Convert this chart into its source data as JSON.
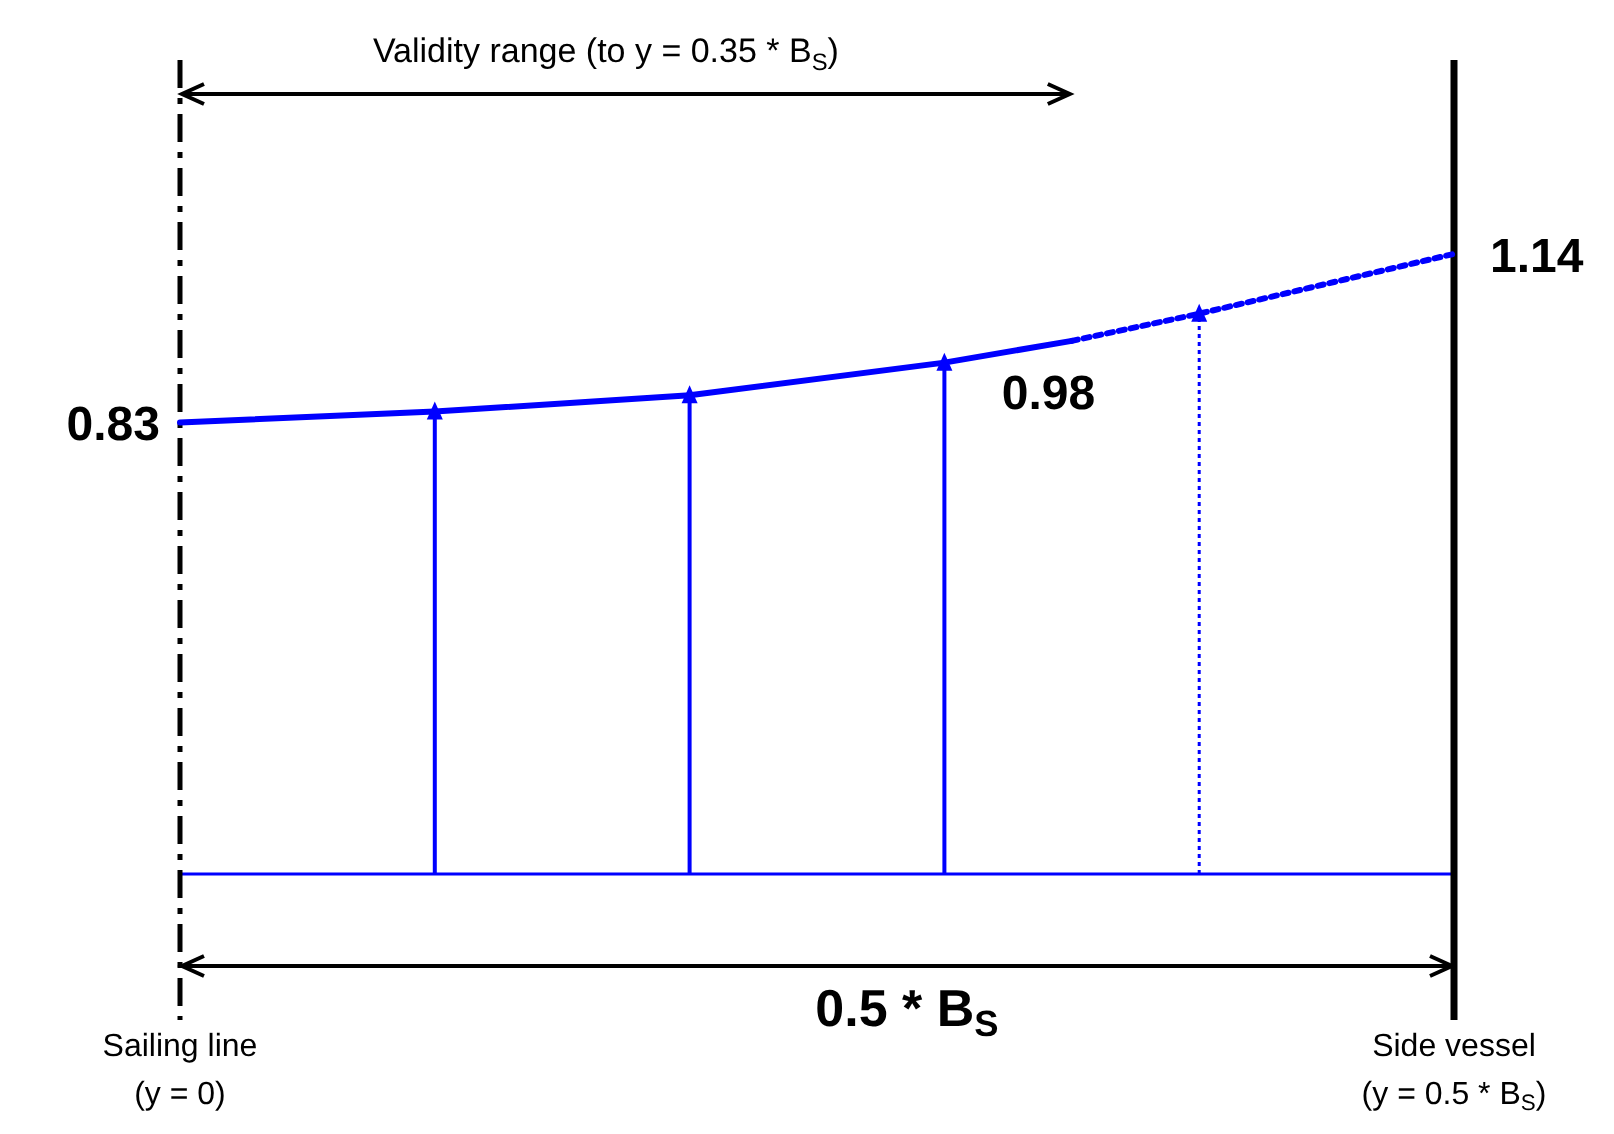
{
  "chart_data": {
    "type": "line",
    "xlim": [
      0,
      0.5
    ],
    "xticks": [
      {
        "value": 0,
        "label": "(y = 0)"
      },
      {
        "value": 0.5,
        "label": "(y = 0.5 * B$_{S}$)"
      }
    ],
    "marker": "none",
    "series": [
      {
        "x": [
          0,
          0.1,
          0.2,
          0.3,
          0.35
        ],
        "values": [
          0.83,
          0.85,
          0.88,
          0.94,
          0.98
        ],
        "color": "#0000ff",
        "line_style": "solid",
        "value_labels": [
          "0.83",
          null,
          null,
          null,
          "0.98"
        ]
      },
      {
        "x": [
          0.35,
          0.4,
          0.5
        ],
        "values": [
          0.98,
          1.03,
          1.14
        ],
        "color": "#0000ff",
        "line_style": "dotted",
        "value_labels": [
          null,
          null,
          "1.14"
        ]
      },
      {
        "type": "lollipop",
        "x": [
          0.1,
          0.2,
          0.3
        ],
        "values": [
          0.85,
          0.88,
          0.94
        ],
        "color": "#0000ff",
        "line_style": "solid",
        "marker": "triangle"
      },
      {
        "type": "lollipop",
        "x": [
          0.4
        ],
        "values": [
          1.03
        ],
        "color": "#0000ff",
        "line_style": "dotted",
        "marker": "triangle"
      }
    ],
    "ref_lines": [
      {
        "axis": "x",
        "value": 0,
        "label": "Sailing line",
        "color": "#000000",
        "line_style": "dashed"
      },
      {
        "axis": "x",
        "value": 0.5,
        "label": "Side vessel",
        "color": "#000000",
        "line_style": "solid"
      }
    ],
    "annotations": [
      "Validity range (to y = 0.35 * B$_{S}$)",
      "0.5 * B$_{S}$"
    ]
  }
}
